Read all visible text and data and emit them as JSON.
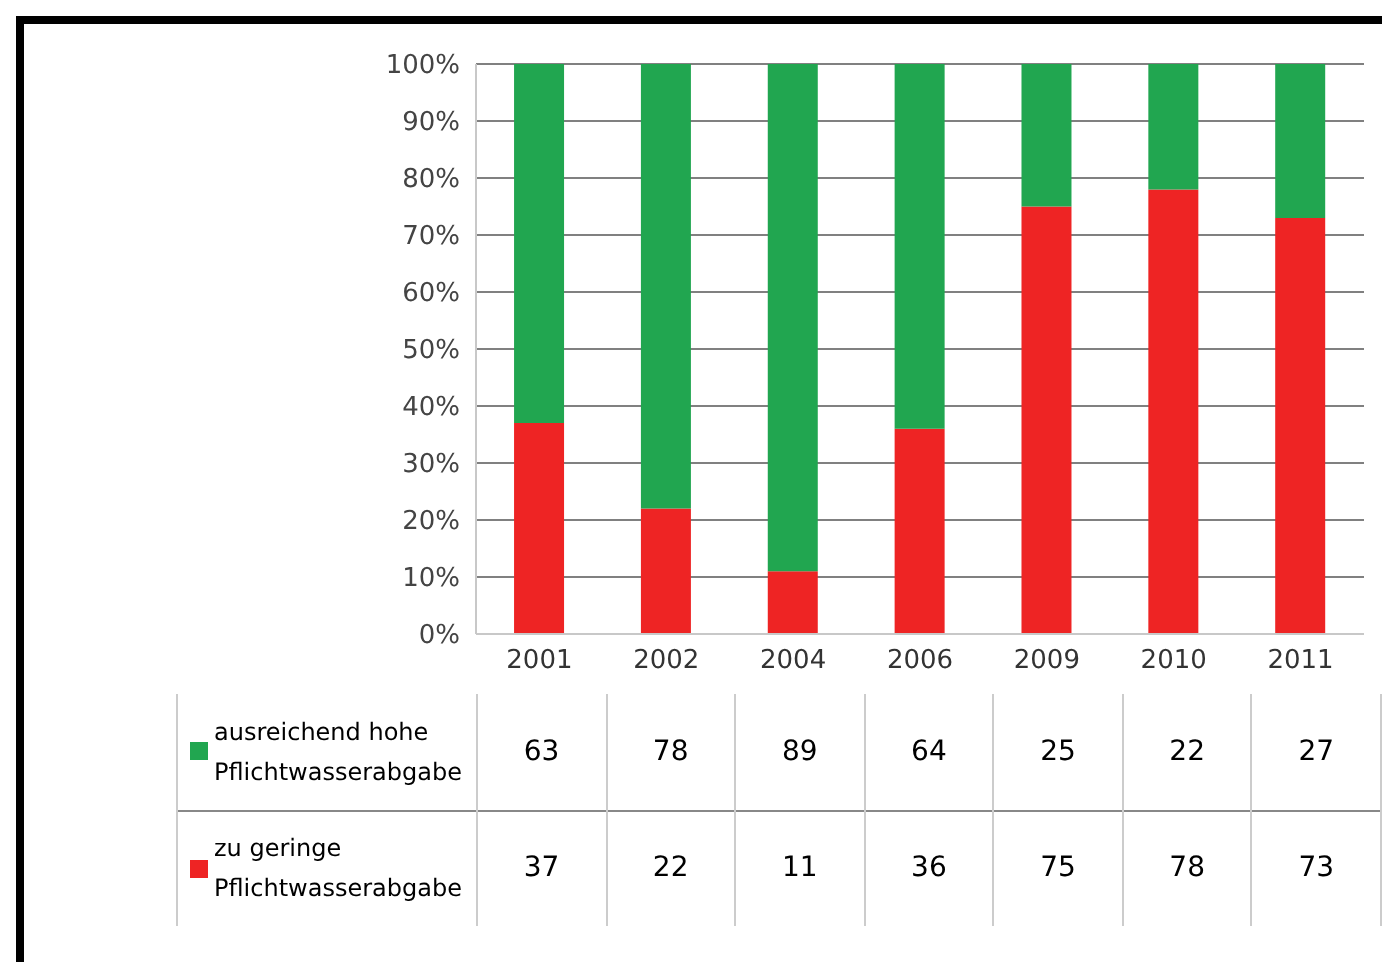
{
  "chart_data": {
    "type": "bar",
    "stacked": true,
    "data_labels": true,
    "grid": "y",
    "legend": "bottom",
    "categories": [
      "2001",
      "2002",
      "2004",
      "2006",
      "2009",
      "2010",
      "2011"
    ],
    "series": [
      {
        "name": "zu geringe Pflichtwasserabgabe",
        "color": "#ee2424",
        "values": [
          37,
          22,
          11,
          36,
          75,
          78,
          73
        ]
      },
      {
        "name": "ausreichend hohe Pflichtwasserabgabe",
        "color": "#21a650",
        "values": [
          63,
          78,
          89,
          64,
          25,
          22,
          27
        ]
      }
    ],
    "ylim": [
      0,
      100
    ],
    "yticks": [
      {
        "value": 0,
        "label": "0%"
      },
      {
        "value": 10,
        "label": "10%"
      },
      {
        "value": 20,
        "label": "20%"
      },
      {
        "value": 30,
        "label": "30%"
      },
      {
        "value": 40,
        "label": "40%"
      },
      {
        "value": 50,
        "label": "50%"
      },
      {
        "value": 60,
        "label": "60%"
      },
      {
        "value": 70,
        "label": "70%"
      },
      {
        "value": 80,
        "label": "80%"
      },
      {
        "value": 90,
        "label": "90%"
      },
      {
        "value": 100,
        "label": "100%"
      }
    ]
  }
}
